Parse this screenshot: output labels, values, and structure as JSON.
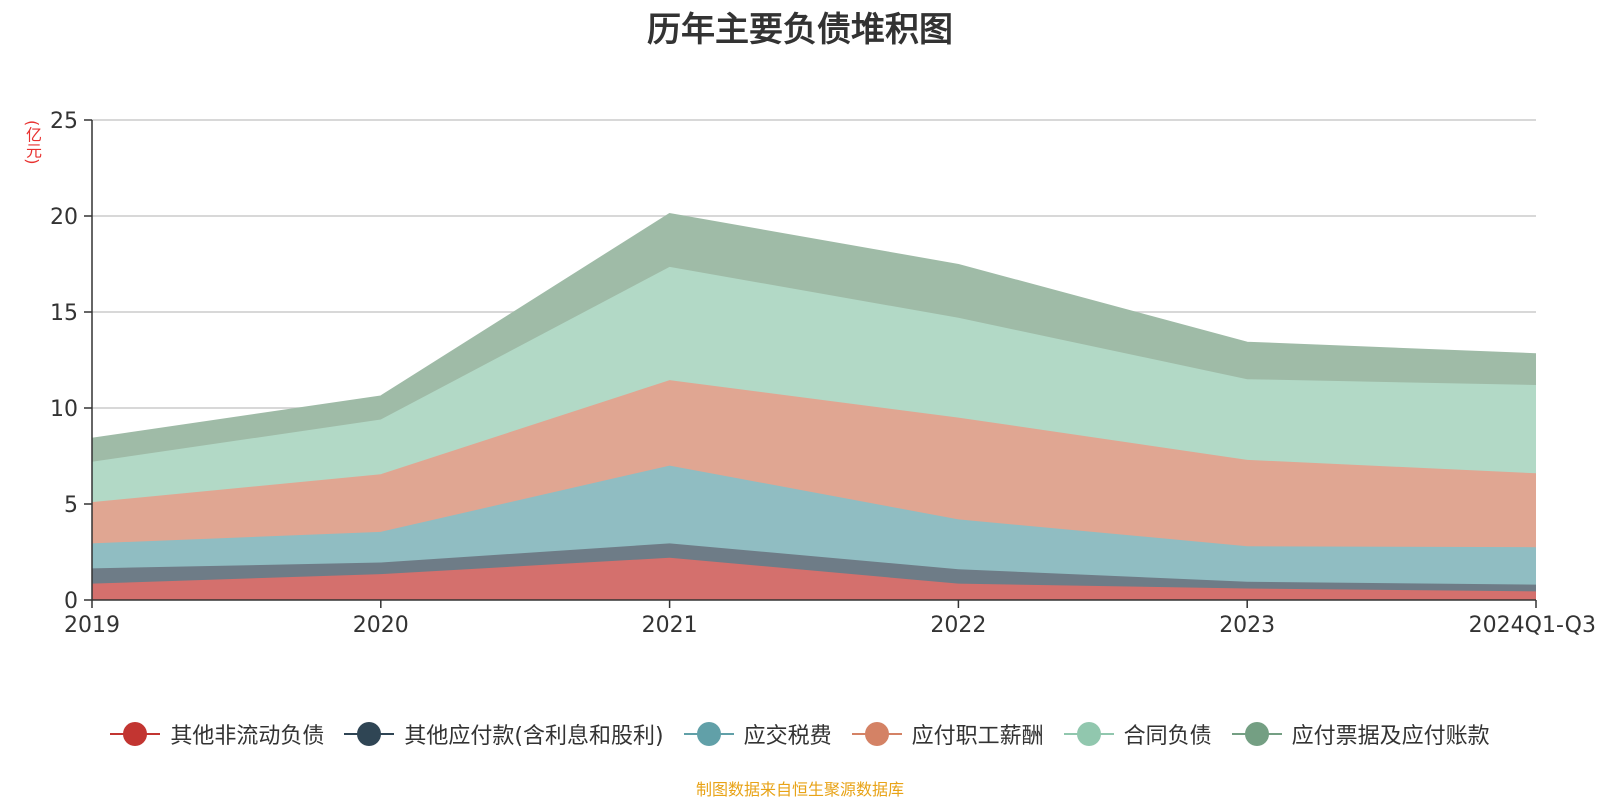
{
  "title": "历年主要负债堆积图",
  "unit": "(亿元)",
  "source": "制图数据来自恒生聚源数据库",
  "chart_data": {
    "type": "area",
    "stacked": true,
    "title": "历年主要负债堆积图",
    "ylabel": "(亿元)",
    "xlabel": "",
    "ylim": [
      0,
      25
    ],
    "yticks": [
      0,
      5,
      10,
      15,
      20,
      25
    ],
    "grid": true,
    "legend_position": "bottom",
    "categories": [
      "2019",
      "2020",
      "2021",
      "2022",
      "2023",
      "2024Q1-Q3"
    ],
    "series": [
      {
        "name": "其他非流动负债",
        "color": "#c23531",
        "fill": "#d4706d",
        "values": [
          0.85,
          1.35,
          2.2,
          0.85,
          0.6,
          0.45
        ]
      },
      {
        "name": "其他应付款(含利息和股利)",
        "color": "#2f4554",
        "fill": "#6e7c87",
        "values": [
          0.8,
          0.6,
          0.75,
          0.75,
          0.35,
          0.35
        ]
      },
      {
        "name": "应交税费",
        "color": "#61a0a8",
        "fill": "#90bdc2",
        "values": [
          1.3,
          1.6,
          4.05,
          2.6,
          1.85,
          1.95
        ]
      },
      {
        "name": "应付职工薪酬",
        "color": "#d48265",
        "fill": "#e0a692",
        "values": [
          2.15,
          3.0,
          4.45,
          5.3,
          4.5,
          3.85
        ]
      },
      {
        "name": "合同负债",
        "color": "#91c7ae",
        "fill": "#b2d9c6",
        "values": [
          2.1,
          2.85,
          5.9,
          5.2,
          4.2,
          4.6
        ]
      },
      {
        "name": "应付票据及应付账款",
        "color": "#749f83",
        "fill": "#9fbba7",
        "values": [
          1.2,
          1.2,
          2.75,
          2.75,
          1.9,
          1.6
        ]
      }
    ]
  }
}
